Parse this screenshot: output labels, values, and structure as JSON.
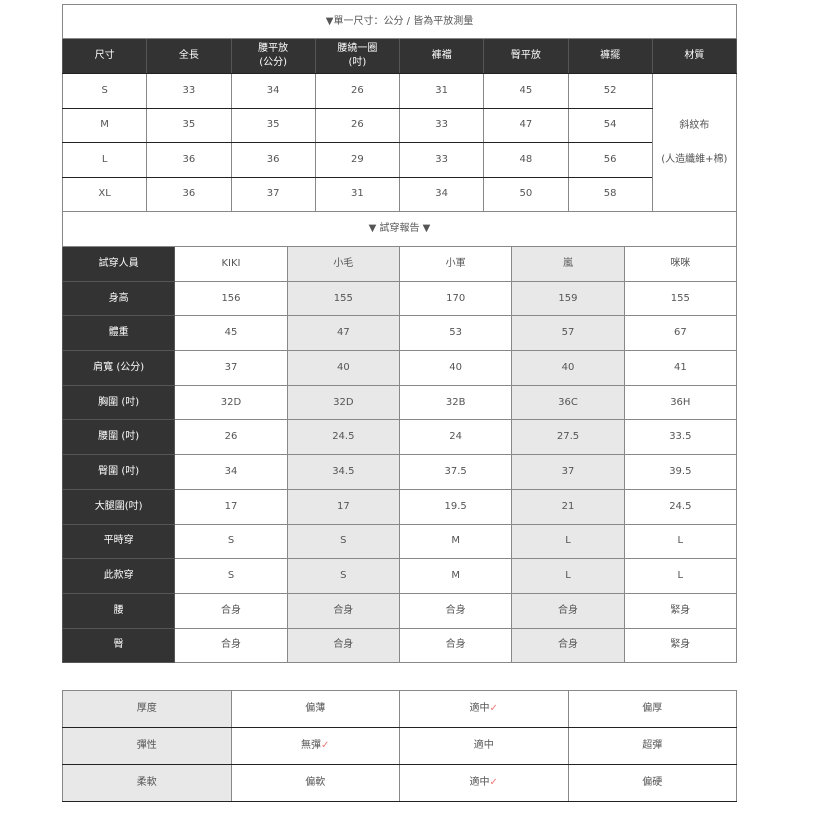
{
  "size_table": {
    "title": "▼單一尺寸：公分 / 皆為平放測量",
    "headers": [
      "尺寸",
      "全長",
      "腰平放\n(公分)",
      "腰繞一圈\n(吋)",
      "褲襠",
      "臀平放",
      "褲擺",
      "材質"
    ],
    "rows": [
      [
        "S",
        "33",
        "34",
        "26",
        "31",
        "45",
        "52"
      ],
      [
        "M",
        "35",
        "35",
        "26",
        "33",
        "47",
        "54"
      ],
      [
        "L",
        "36",
        "36",
        "29",
        "33",
        "48",
        "56"
      ],
      [
        "XL",
        "36",
        "37",
        "31",
        "34",
        "50",
        "58"
      ]
    ],
    "material_line1": "斜紋布",
    "material_line2": "(人造纖維+棉)"
  },
  "fit_report": {
    "title": "▼ 試穿報告 ▼",
    "header_label": "試穿人員",
    "people": [
      "KIKI",
      "小毛",
      "小軍",
      "嵐",
      "咪咪"
    ],
    "rows": [
      {
        "label": "身高",
        "values": [
          "156",
          "155",
          "170",
          "159",
          "155"
        ]
      },
      {
        "label": "體重",
        "values": [
          "45",
          "47",
          "53",
          "57",
          "67"
        ]
      },
      {
        "label": "肩寬 (公分)",
        "values": [
          "37",
          "40",
          "40",
          "40",
          "41"
        ]
      },
      {
        "label": "胸圍 (吋)",
        "values": [
          "32D",
          "32D",
          "32B",
          "36C",
          "36H"
        ]
      },
      {
        "label": "腰圍 (吋)",
        "values": [
          "26",
          "24.5",
          "24",
          "27.5",
          "33.5"
        ]
      },
      {
        "label": "臀圍 (吋)",
        "values": [
          "34",
          "34.5",
          "37.5",
          "37",
          "39.5"
        ]
      },
      {
        "label": "大腿圍(吋)",
        "values": [
          "17",
          "17",
          "19.5",
          "21",
          "24.5"
        ]
      },
      {
        "label": "平時穿",
        "values": [
          "S",
          "S",
          "M",
          "L",
          "L"
        ]
      },
      {
        "label": "此款穿",
        "values": [
          "S",
          "S",
          "M",
          "L",
          "L"
        ]
      },
      {
        "label": "腰",
        "values": [
          "合身",
          "合身",
          "合身",
          "合身",
          "緊身"
        ]
      },
      {
        "label": "臀",
        "values": [
          "合身",
          "合身",
          "合身",
          "合身",
          "緊身"
        ]
      }
    ]
  },
  "fabric": {
    "check_mark": "✓",
    "check_color": "#f07a7a",
    "rows": [
      {
        "label": "厚度",
        "options": [
          "偏薄",
          "適中",
          "偏厚"
        ],
        "selected": 1
      },
      {
        "label": "彈性",
        "options": [
          "無彈",
          "適中",
          "超彈"
        ],
        "selected": 0
      },
      {
        "label": "柔軟",
        "options": [
          "偏軟",
          "適中",
          "偏硬"
        ],
        "selected": 1
      }
    ]
  }
}
